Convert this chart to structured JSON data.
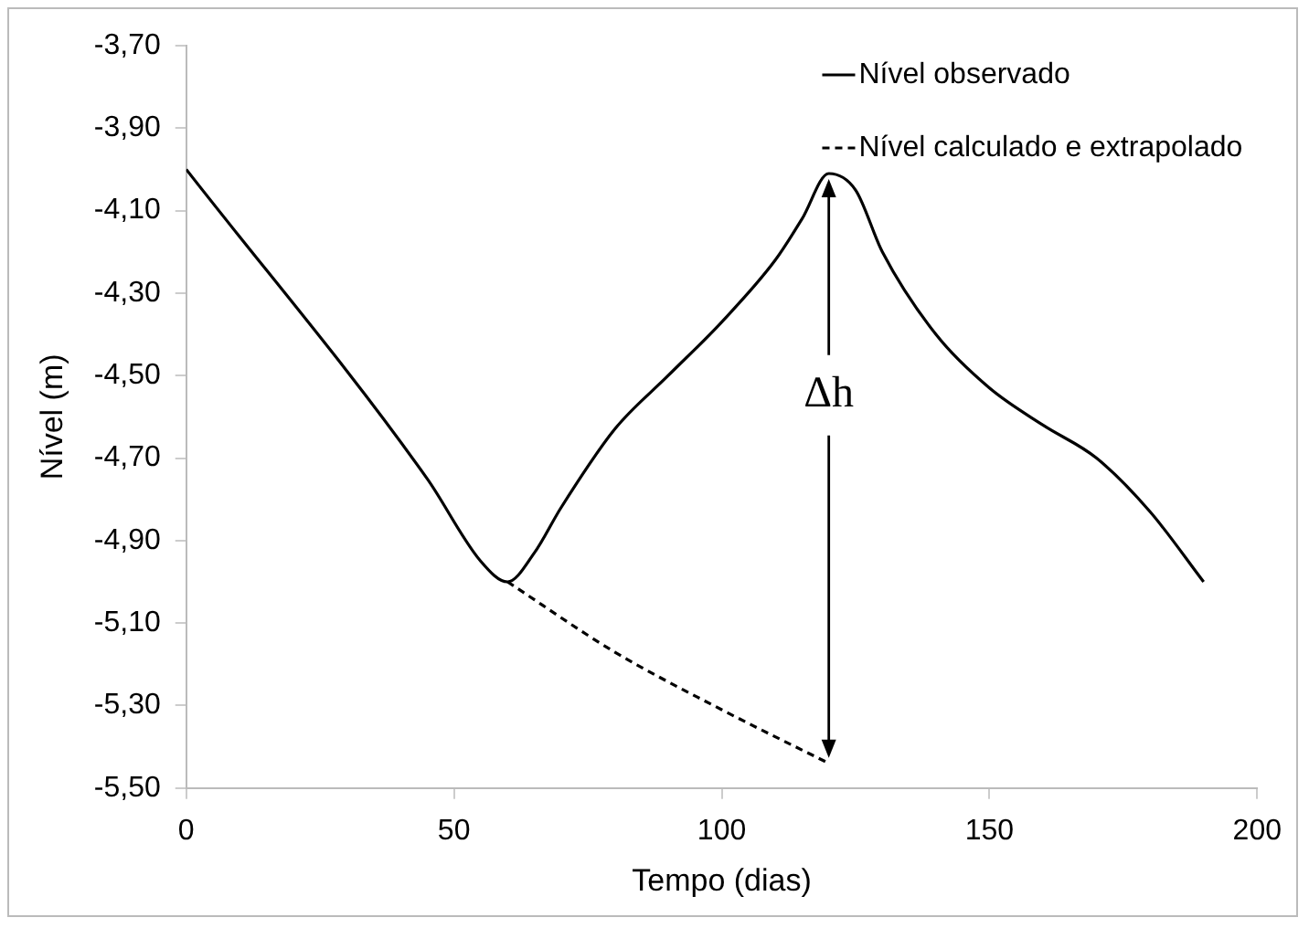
{
  "chart_data": {
    "type": "line",
    "xlabel": "Tempo (dias)",
    "ylabel": "Nível (m)",
    "xlim": [
      0,
      200
    ],
    "xticks": [
      0,
      50,
      100,
      150,
      200
    ],
    "ylim": [
      -5.5,
      -3.7
    ],
    "yticks": [
      {
        "value": -3.7,
        "label": "-3,70"
      },
      {
        "value": -3.9,
        "label": "-3,90"
      },
      {
        "value": -4.1,
        "label": "-4,10"
      },
      {
        "value": -4.3,
        "label": "-4,30"
      },
      {
        "value": -4.5,
        "label": "-4,50"
      },
      {
        "value": -4.7,
        "label": "-4,70"
      },
      {
        "value": -4.9,
        "label": "-4,90"
      },
      {
        "value": -5.1,
        "label": "-5,10"
      },
      {
        "value": -5.3,
        "label": "-5,30"
      },
      {
        "value": -5.5,
        "label": "-5,50"
      }
    ],
    "grid": false,
    "legend": "top right",
    "marker": "none",
    "series": [
      {
        "name": "Nível observado",
        "color": "#000000",
        "line_style": "solid",
        "x": [
          0,
          45,
          55,
          60,
          65,
          70,
          80,
          90,
          100,
          110,
          115,
          120,
          125,
          130,
          140,
          150,
          160,
          170,
          180,
          190
        ],
        "values": [
          -4.0,
          -4.75,
          -4.95,
          -5.0,
          -4.93,
          -4.82,
          -4.63,
          -4.5,
          -4.37,
          -4.22,
          -4.12,
          -4.01,
          -4.05,
          -4.2,
          -4.4,
          -4.53,
          -4.62,
          -4.7,
          -4.83,
          -5.0
        ]
      },
      {
        "name": "Nível calculado e extrapolado",
        "color": "#000000",
        "line_style": "dashed",
        "x": [
          60,
          80,
          100,
          120
        ],
        "values": [
          -5.0,
          -5.17,
          -5.31,
          -5.44
        ]
      }
    ],
    "annotations": [
      {
        "text": "Δh",
        "x": 120,
        "y": -5.44
      }
    ]
  }
}
